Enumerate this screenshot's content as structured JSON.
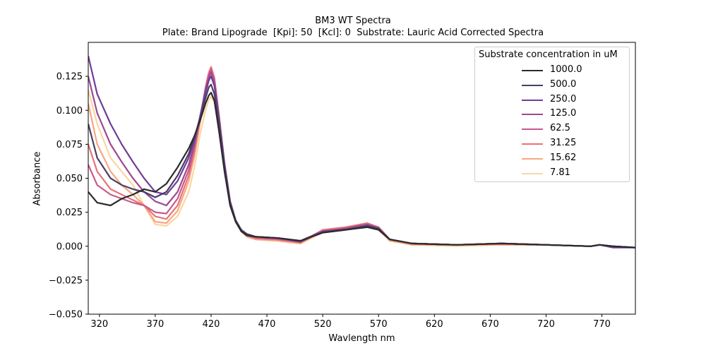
{
  "chart_data": {
    "type": "line",
    "title": "BM3 WT Spectra",
    "subtitle": "Plate: Brand Lipograde  [Kpi]: 50  [Kcl]: 0  Substrate: Lauric Acid Corrected Spectra",
    "xlabel": "Wavlength nm",
    "ylabel": "Absorbance",
    "xlim": [
      310,
      800
    ],
    "ylim": [
      -0.05,
      0.15
    ],
    "xticks": [
      320,
      370,
      420,
      470,
      520,
      570,
      620,
      670,
      720,
      770
    ],
    "yticks": [
      -0.05,
      -0.025,
      0.0,
      0.025,
      0.05,
      0.075,
      0.1,
      0.125
    ],
    "ytick_labels": [
      "−0.050",
      "−0.025",
      "0.000",
      "0.025",
      "0.050",
      "0.075",
      "0.100",
      "0.125"
    ],
    "grid": false,
    "legend": {
      "title": "Substrate concentration in uM",
      "placement": "top-right"
    },
    "series": [
      {
        "name": "1000.0",
        "color": "#2b2b2b",
        "x": [
          310,
          318,
          330,
          340,
          350,
          360,
          370,
          380,
          390,
          400,
          405,
          410,
          415,
          418,
          420,
          423,
          427,
          432,
          437,
          442,
          447,
          452,
          460,
          480,
          500,
          520,
          540,
          560,
          570,
          580,
          600,
          640,
          680,
          720,
          760,
          768,
          780,
          800
        ],
        "y": [
          0.04,
          0.032,
          0.03,
          0.035,
          0.038,
          0.042,
          0.04,
          0.046,
          0.058,
          0.072,
          0.081,
          0.092,
          0.105,
          0.111,
          0.113,
          0.107,
          0.085,
          0.055,
          0.03,
          0.018,
          0.011,
          0.008,
          0.007,
          0.006,
          0.004,
          0.01,
          0.012,
          0.014,
          0.012,
          0.005,
          0.002,
          0.001,
          0.002,
          0.001,
          0.0,
          0.001,
          0.0,
          -0.001
        ]
      },
      {
        "name": "500.0",
        "color": "#4a3d66",
        "x": [
          310,
          318,
          330,
          340,
          350,
          360,
          370,
          380,
          390,
          400,
          405,
          410,
          415,
          418,
          420,
          423,
          427,
          432,
          437,
          442,
          447,
          452,
          460,
          480,
          500,
          520,
          540,
          560,
          570,
          580,
          600,
          640,
          680,
          720,
          760,
          768,
          780,
          800
        ],
        "y": [
          0.09,
          0.065,
          0.05,
          0.045,
          0.042,
          0.04,
          0.036,
          0.04,
          0.052,
          0.068,
          0.08,
          0.094,
          0.109,
          0.117,
          0.119,
          0.112,
          0.09,
          0.058,
          0.032,
          0.019,
          0.012,
          0.009,
          0.007,
          0.006,
          0.004,
          0.01,
          0.012,
          0.015,
          0.013,
          0.005,
          0.002,
          0.001,
          0.002,
          0.001,
          0.0,
          0.001,
          0.0,
          -0.001
        ]
      },
      {
        "name": "250.0",
        "color": "#6f3d96",
        "x": [
          310,
          318,
          330,
          340,
          350,
          360,
          370,
          380,
          390,
          400,
          405,
          410,
          415,
          418,
          420,
          423,
          427,
          432,
          437,
          442,
          447,
          452,
          460,
          480,
          500,
          520,
          540,
          560,
          570,
          580,
          600,
          640,
          680,
          720,
          760,
          768,
          780,
          800
        ],
        "y": [
          0.14,
          0.112,
          0.09,
          0.075,
          0.062,
          0.05,
          0.04,
          0.038,
          0.048,
          0.065,
          0.078,
          0.095,
          0.113,
          0.122,
          0.125,
          0.118,
          0.094,
          0.06,
          0.033,
          0.019,
          0.012,
          0.009,
          0.007,
          0.006,
          0.004,
          0.011,
          0.012,
          0.015,
          0.013,
          0.005,
          0.002,
          0.001,
          0.002,
          0.001,
          0.0,
          0.001,
          -0.001,
          -0.001
        ]
      },
      {
        "name": "125.0",
        "color": "#9c4a8f",
        "x": [
          310,
          318,
          330,
          340,
          350,
          360,
          370,
          380,
          390,
          400,
          405,
          410,
          415,
          418,
          420,
          423,
          427,
          432,
          437,
          442,
          447,
          452,
          460,
          480,
          500,
          520,
          540,
          560,
          570,
          580,
          600,
          640,
          680,
          720,
          760,
          768,
          780,
          800
        ],
        "y": [
          0.125,
          0.098,
          0.075,
          0.062,
          0.05,
          0.04,
          0.033,
          0.03,
          0.04,
          0.06,
          0.075,
          0.095,
          0.115,
          0.124,
          0.128,
          0.12,
          0.095,
          0.061,
          0.033,
          0.019,
          0.012,
          0.008,
          0.007,
          0.006,
          0.003,
          0.011,
          0.013,
          0.016,
          0.013,
          0.005,
          0.002,
          0.001,
          0.002,
          0.001,
          0.0,
          0.001,
          0.0,
          -0.001
        ]
      },
      {
        "name": "62.5",
        "color": "#c85a8c",
        "x": [
          310,
          318,
          330,
          340,
          350,
          360,
          370,
          380,
          390,
          400,
          405,
          410,
          415,
          418,
          420,
          423,
          427,
          432,
          437,
          442,
          447,
          452,
          460,
          480,
          500,
          520,
          540,
          560,
          570,
          580,
          600,
          640,
          680,
          720,
          760,
          768,
          780,
          800
        ],
        "y": [
          0.06,
          0.045,
          0.038,
          0.035,
          0.032,
          0.03,
          0.025,
          0.024,
          0.035,
          0.056,
          0.072,
          0.094,
          0.116,
          0.126,
          0.13,
          0.122,
          0.096,
          0.061,
          0.033,
          0.019,
          0.012,
          0.008,
          0.006,
          0.005,
          0.003,
          0.011,
          0.013,
          0.016,
          0.014,
          0.005,
          0.002,
          0.001,
          0.002,
          0.001,
          0.0,
          0.001,
          0.0,
          -0.001
        ]
      },
      {
        "name": "31.25",
        "color": "#e8737a",
        "x": [
          310,
          318,
          330,
          340,
          350,
          360,
          370,
          380,
          390,
          400,
          405,
          410,
          415,
          418,
          420,
          423,
          427,
          432,
          437,
          442,
          447,
          452,
          460,
          480,
          500,
          520,
          540,
          560,
          570,
          580,
          600,
          640,
          680,
          720,
          760,
          768,
          780,
          800
        ],
        "y": [
          0.075,
          0.055,
          0.042,
          0.038,
          0.034,
          0.03,
          0.022,
          0.02,
          0.03,
          0.052,
          0.07,
          0.093,
          0.117,
          0.128,
          0.132,
          0.124,
          0.097,
          0.061,
          0.033,
          0.019,
          0.011,
          0.008,
          0.006,
          0.005,
          0.003,
          0.012,
          0.014,
          0.017,
          0.014,
          0.005,
          0.002,
          0.001,
          0.002,
          0.001,
          0.0,
          0.001,
          0.0,
          -0.001
        ]
      },
      {
        "name": "15.62",
        "color": "#f7a880",
        "x": [
          310,
          318,
          330,
          340,
          350,
          360,
          370,
          380,
          390,
          400,
          405,
          410,
          415,
          418,
          420,
          423,
          427,
          432,
          437,
          442,
          447,
          452,
          460,
          480,
          500,
          520,
          540,
          560,
          570,
          580,
          600,
          640,
          680,
          720,
          760,
          768,
          780,
          800
        ],
        "y": [
          0.105,
          0.075,
          0.055,
          0.045,
          0.038,
          0.03,
          0.018,
          0.017,
          0.026,
          0.048,
          0.066,
          0.09,
          0.115,
          0.126,
          0.13,
          0.122,
          0.096,
          0.06,
          0.032,
          0.018,
          0.011,
          0.007,
          0.005,
          0.004,
          0.002,
          0.011,
          0.013,
          0.016,
          0.013,
          0.004,
          0.001,
          0.001,
          0.001,
          0.001,
          0.0,
          0.001,
          0.0,
          -0.001
        ]
      },
      {
        "name": "7.81",
        "color": "#fbd6a0",
        "x": [
          310,
          318,
          330,
          340,
          350,
          360,
          370,
          380,
          390,
          400,
          405,
          410,
          415,
          418,
          420,
          423,
          427,
          432,
          437,
          442,
          447,
          452,
          460,
          480,
          500,
          520,
          540,
          560,
          570,
          580,
          600,
          640,
          680,
          720,
          760,
          768,
          780,
          800
        ],
        "y": [
          0.115,
          0.09,
          0.065,
          0.055,
          0.045,
          0.03,
          0.016,
          0.015,
          0.022,
          0.04,
          0.058,
          0.082,
          0.1,
          0.108,
          0.11,
          0.106,
          0.088,
          0.057,
          0.031,
          0.018,
          0.011,
          0.007,
          0.005,
          0.004,
          0.002,
          0.01,
          0.012,
          0.015,
          0.012,
          0.004,
          0.001,
          0.0,
          0.001,
          0.001,
          0.0,
          0.001,
          0.0,
          -0.001
        ]
      }
    ]
  }
}
